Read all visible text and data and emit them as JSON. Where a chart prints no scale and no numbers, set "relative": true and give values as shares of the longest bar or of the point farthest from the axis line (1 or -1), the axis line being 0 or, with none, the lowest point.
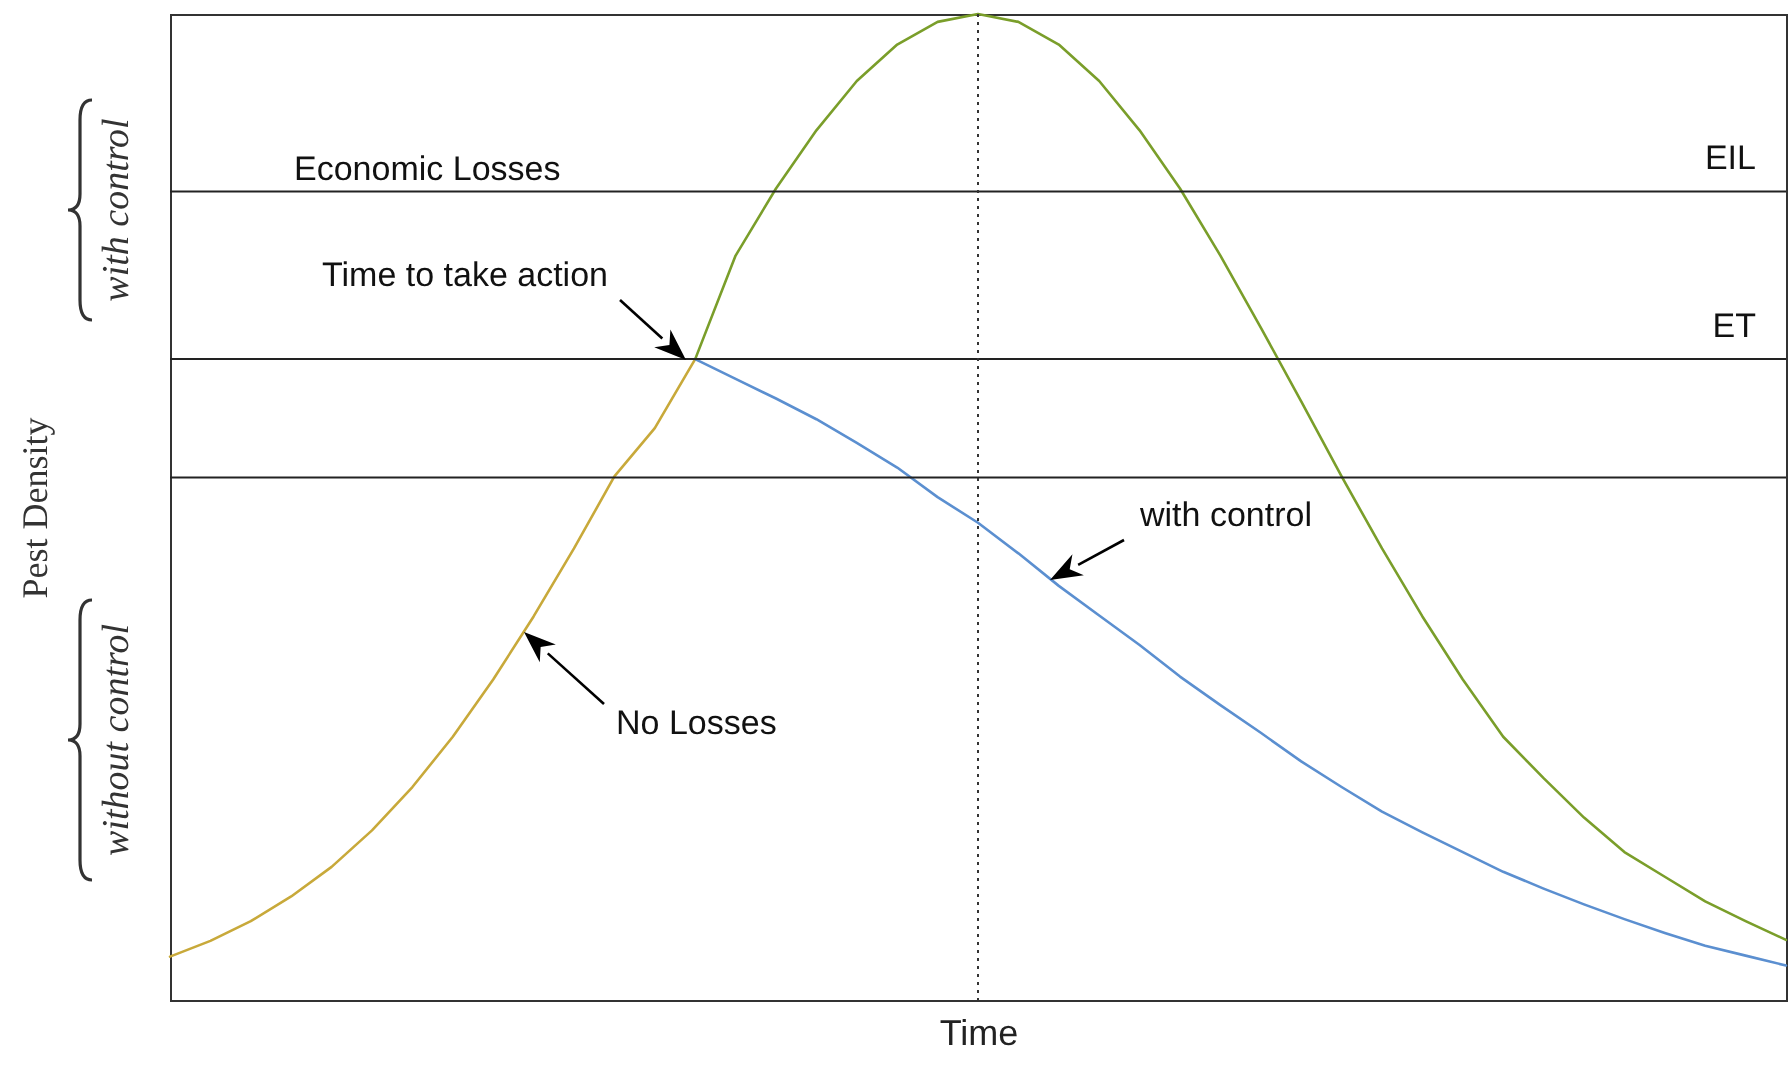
{
  "chart_data": {
    "type": "line",
    "relative": true,
    "xlabel": "Time",
    "ylabel": "Pest Density",
    "marker": "none",
    "line_style": "solid",
    "categories": [
      null,
      null,
      null,
      null,
      null,
      null,
      null,
      null,
      null,
      null,
      null,
      null,
      null,
      null,
      null,
      null,
      null,
      null,
      null,
      null,
      null,
      null,
      null,
      null,
      null,
      null,
      null,
      null,
      null,
      null,
      null,
      null,
      null,
      null,
      null,
      null,
      null,
      null,
      null,
      null,
      null
    ],
    "series": [
      {
        "color": "#c8a93a",
        "values": [
          0.044,
          0.06,
          0.08,
          0.105,
          0.135,
          0.172,
          0.216,
          0.267,
          0.325,
          0.389,
          0.458,
          0.531,
          0.58,
          0.65,
          null,
          null,
          null,
          null,
          null,
          null,
          null,
          null,
          null,
          null,
          null,
          null,
          null,
          null,
          null,
          null,
          null,
          null,
          null,
          null,
          null,
          null,
          null,
          null,
          null,
          null,
          null
        ]
      },
      {
        "color": "#7a9e2a",
        "values": [
          null,
          null,
          null,
          null,
          null,
          null,
          null,
          null,
          null,
          null,
          null,
          null,
          null,
          0.65,
          0.755,
          0.823,
          0.882,
          0.932,
          0.969,
          0.992,
          1,
          0.992,
          0.969,
          0.932,
          0.882,
          0.823,
          0.755,
          0.682,
          0.607,
          0.531,
          0.458,
          0.389,
          0.325,
          0.267,
          0.225,
          0.185,
          0.15,
          0.125,
          0.1,
          0.08,
          0.061
        ]
      },
      {
        "color": "#5b8fd0",
        "values": [
          null,
          null,
          null,
          null,
          null,
          null,
          null,
          null,
          null,
          null,
          null,
          null,
          null,
          0.65,
          0.63,
          0.61,
          0.589,
          0.565,
          0.54,
          0.51,
          0.484,
          0.453,
          0.42,
          0.39,
          0.36,
          0.328,
          0.299,
          0.271,
          0.242,
          0.216,
          0.191,
          0.17,
          0.15,
          0.13,
          0.113,
          0.097,
          0.082,
          0.068,
          0.055,
          0.045,
          0.035
        ]
      }
    ],
    "ref_lines": [
      {
        "axis": "y",
        "value": 0.82,
        "label": "EIL",
        "color": "#222222"
      },
      {
        "axis": "y",
        "value": 0.65,
        "label": "ET",
        "color": "#222222"
      },
      {
        "axis": "y",
        "value": 0.53,
        "color": "#222222"
      },
      {
        "axis": "x",
        "color": "#333333",
        "line_style": "dotted"
      }
    ],
    "annotations": [
      "Economic Losses",
      "Time to take action",
      "No Losses",
      "with control",
      "with control",
      "without control"
    ]
  }
}
